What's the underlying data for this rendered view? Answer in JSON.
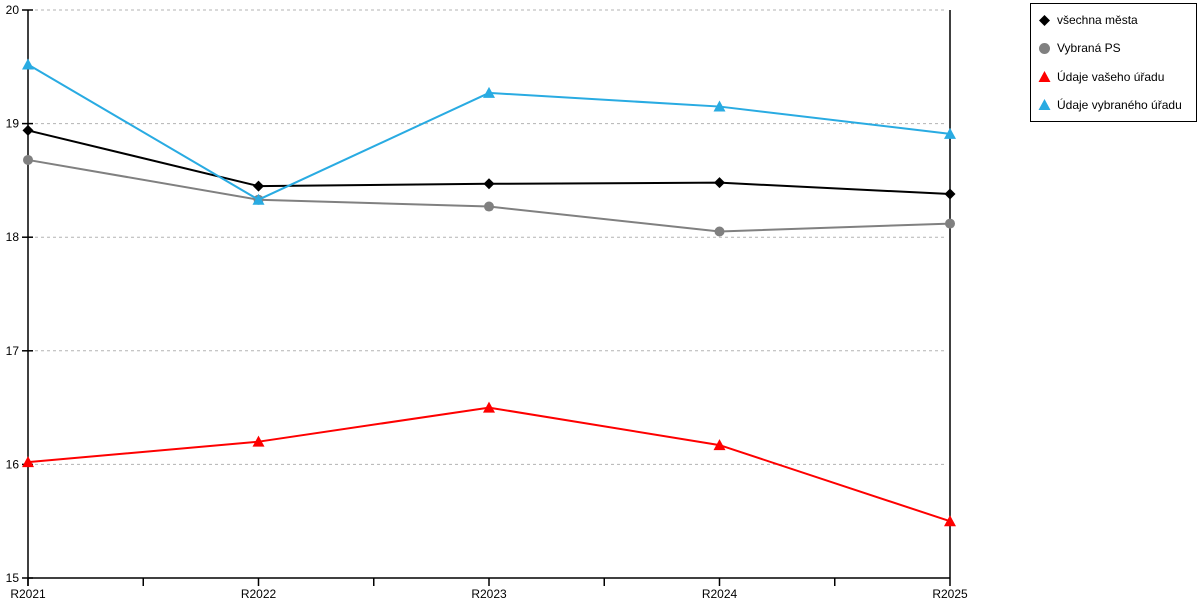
{
  "chart_data": {
    "type": "line",
    "title": "",
    "xlabel": "",
    "ylabel": "",
    "categories": [
      "R2021",
      "R2022",
      "R2023",
      "R2024",
      "R2025"
    ],
    "series": [
      {
        "name": "všechna města",
        "color": "#000000",
        "marker": "diamond",
        "values": [
          18.94,
          18.45,
          18.47,
          18.48,
          18.38
        ]
      },
      {
        "name": "Vybraná PS",
        "color": "#808080",
        "marker": "circle",
        "values": [
          18.68,
          18.33,
          18.27,
          18.05,
          18.12
        ]
      },
      {
        "name": "Údaje vašeho úřadu",
        "color": "#FE0000",
        "marker": "triangle",
        "values": [
          16.02,
          16.2,
          16.5,
          16.17,
          15.5
        ]
      },
      {
        "name": "Údaje vybraného úřadu",
        "color": "#29ABE2",
        "marker": "triangle",
        "values": [
          19.52,
          18.33,
          19.27,
          19.15,
          18.91
        ]
      }
    ],
    "ylim": [
      15,
      20
    ],
    "yticks": [
      15,
      16,
      17,
      18,
      19,
      20
    ],
    "grid": true,
    "gridline_color": "#b3b3b3",
    "axis_color": "#000000",
    "legend_position": "top-right"
  }
}
